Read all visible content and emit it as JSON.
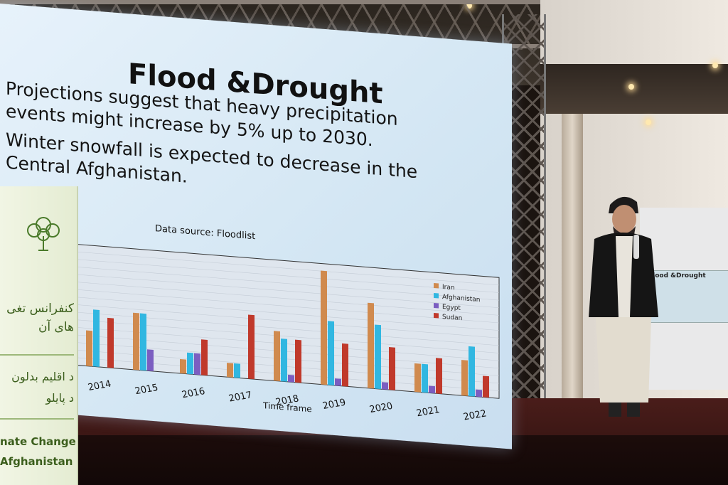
{
  "slide": {
    "title": "Flood &Drought",
    "lines": [
      "Projections suggest that heavy precipitation",
      "events might increase by 5% up to 2030.",
      "Winter snowfall is expected to decrease in the",
      "Central Afghanistan."
    ],
    "data_source": "Data source: Floodlist"
  },
  "chart_data": {
    "type": "bar",
    "title": "",
    "xlabel": "Time frame",
    "ylabel": "",
    "categories": [
      "2014",
      "2015",
      "2016",
      "2017",
      "2018",
      "2019",
      "2020",
      "2021",
      "2022"
    ],
    "series": [
      {
        "name": "Iran",
        "color": "#d08a4e",
        "values": [
          5,
          8,
          2,
          2,
          7,
          16,
          12,
          4,
          5
        ]
      },
      {
        "name": "Afghanistan",
        "color": "#31b7e1",
        "values": [
          8,
          8,
          3,
          2,
          6,
          9,
          9,
          4,
          7
        ]
      },
      {
        "name": "Egypt",
        "color": "#7b5ec1",
        "values": [
          0,
          3,
          3,
          0,
          1,
          1,
          1,
          1,
          1
        ]
      },
      {
        "name": "Sudan",
        "color": "#c0392b",
        "values": [
          7,
          0,
          5,
          9,
          6,
          6,
          6,
          5,
          3
        ]
      }
    ],
    "ylim": [
      0,
      17
    ],
    "legend": "top-right",
    "grid": true
  },
  "banner": {
    "line1": "کنفرانس تغی",
    "line2": "های آن",
    "line3": "د اقلیم بدلون",
    "line4": "د پایلو",
    "en1": "nate Change",
    "en2": "Afghanistan"
  },
  "small_screen": {
    "title": "Flood &Drought"
  }
}
